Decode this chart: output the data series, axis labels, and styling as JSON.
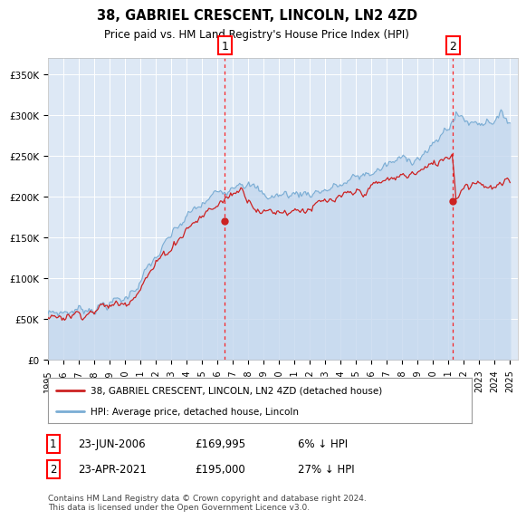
{
  "title": "38, GABRIEL CRESCENT, LINCOLN, LN2 4ZD",
  "subtitle": "Price paid vs. HM Land Registry's House Price Index (HPI)",
  "ylabel_ticks": [
    "£0",
    "£50K",
    "£100K",
    "£150K",
    "£200K",
    "£250K",
    "£300K",
    "£350K"
  ],
  "ytick_values": [
    0,
    50000,
    100000,
    150000,
    200000,
    250000,
    300000,
    350000
  ],
  "ylim": [
    0,
    370000
  ],
  "xlim_start": 1995.0,
  "xlim_end": 2025.5,
  "background_color": "#dde8f5",
  "plot_bg_color": "#dde8f5",
  "hpi_color": "#7aadd4",
  "hpi_fill_color": "#c5d8ee",
  "price_color": "#cc2222",
  "sale1_date": 2006.48,
  "sale1_price": 169995,
  "sale2_date": 2021.3,
  "sale2_price": 195000,
  "legend_label_price": "38, GABRIEL CRESCENT, LINCOLN, LN2 4ZD (detached house)",
  "legend_label_hpi": "HPI: Average price, detached house, Lincoln",
  "annotation1_date": "23-JUN-2006",
  "annotation1_price": "£169,995",
  "annotation1_pct": "6% ↓ HPI",
  "annotation2_date": "23-APR-2021",
  "annotation2_price": "£195,000",
  "annotation2_pct": "27% ↓ HPI",
  "footer": "Contains HM Land Registry data © Crown copyright and database right 2024.\nThis data is licensed under the Open Government Licence v3.0.",
  "xtick_years": [
    1995,
    1996,
    1997,
    1998,
    1999,
    2000,
    2001,
    2002,
    2003,
    2004,
    2005,
    2006,
    2007,
    2008,
    2009,
    2010,
    2011,
    2012,
    2013,
    2014,
    2015,
    2016,
    2017,
    2018,
    2019,
    2020,
    2021,
    2022,
    2023,
    2024,
    2025
  ]
}
